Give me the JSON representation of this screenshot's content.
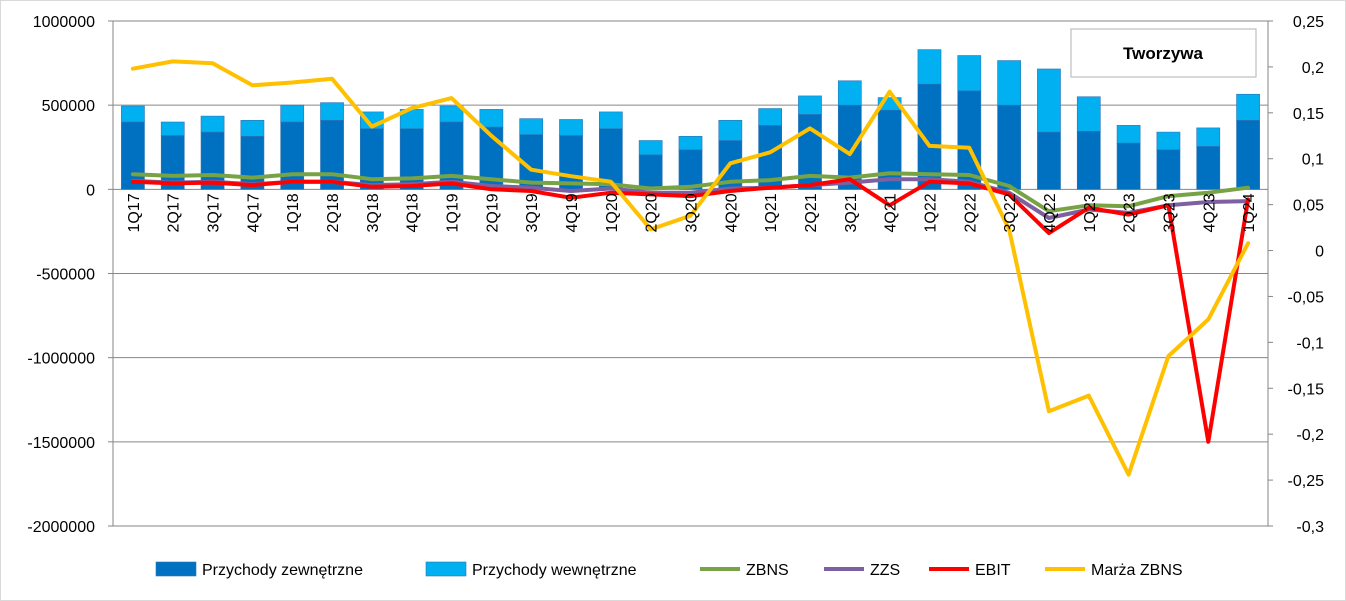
{
  "chart_data": {
    "type": "bar",
    "title": "Tworzywa",
    "categories": [
      "1Q17",
      "2Q17",
      "3Q17",
      "4Q17",
      "1Q18",
      "2Q18",
      "3Q18",
      "4Q18",
      "1Q19",
      "2Q19",
      "3Q19",
      "4Q19",
      "1Q20",
      "2Q20",
      "3Q20",
      "4Q20",
      "1Q21",
      "2Q21",
      "3Q21",
      "4Q21",
      "1Q22",
      "2Q22",
      "3Q22",
      "4Q22",
      "1Q23",
      "2Q23",
      "3Q23",
      "4Q23",
      "1Q24"
    ],
    "y_left": {
      "min": -2000000,
      "max": 1000000,
      "ticks": [
        1000000,
        500000,
        0,
        -500000,
        -1000000,
        -1500000,
        -2000000
      ],
      "tick_labels": [
        "1000000",
        "500000",
        "0",
        "-500000",
        "-1000000",
        "-1500000",
        "-2000000"
      ]
    },
    "y_right": {
      "min": -0.3,
      "max": 0.25,
      "ticks": [
        0.25,
        0.2,
        0.15,
        0.1,
        0.05,
        0,
        -0.05,
        -0.1,
        -0.15,
        -0.2,
        -0.25,
        -0.3
      ],
      "tick_labels": [
        "0,25",
        "0,2",
        "0,15",
        "0,1",
        "0,05",
        "0",
        "-0,05",
        "-0,1",
        "-0,15",
        "-0,2",
        "-0,25",
        "-0,3"
      ]
    },
    "stacked_series": [
      {
        "name": "Przychody zewnętrzne",
        "color": "#0070C0",
        "values": [
          400000,
          320000,
          340000,
          315000,
          400000,
          410000,
          360000,
          360000,
          400000,
          370000,
          325000,
          320000,
          360000,
          205000,
          235000,
          290000,
          380000,
          445000,
          500000,
          470000,
          625000,
          585000,
          500000,
          340000,
          345000,
          275000,
          235000,
          255000,
          410000
        ]
      },
      {
        "name": "Przychody wewnętrzne",
        "color": "#00B0F0",
        "values": [
          95000,
          80000,
          95000,
          95000,
          100000,
          105000,
          100000,
          115000,
          95000,
          105000,
          95000,
          95000,
          100000,
          85000,
          80000,
          120000,
          100000,
          110000,
          145000,
          75000,
          205000,
          210000,
          265000,
          375000,
          205000,
          105000,
          105000,
          110000,
          155000
        ]
      }
    ],
    "line_series": [
      {
        "name": "ZBNS",
        "color": "#77A344",
        "axis": "left",
        "values": [
          90000,
          80000,
          85000,
          70000,
          90000,
          90000,
          60000,
          65000,
          80000,
          60000,
          40000,
          35000,
          30000,
          5000,
          15000,
          45000,
          55000,
          80000,
          70000,
          95000,
          90000,
          85000,
          20000,
          -130000,
          -95000,
          -100000,
          -40000,
          -20000,
          10000
        ]
      },
      {
        "name": "ZZS",
        "color": "#7D60A0",
        "axis": "left",
        "values": [
          50000,
          40000,
          45000,
          30000,
          45000,
          45000,
          25000,
          30000,
          45000,
          20000,
          10000,
          -10000,
          5000,
          -20000,
          -20000,
          5000,
          10000,
          25000,
          40000,
          60000,
          60000,
          45000,
          -20000,
          -170000,
          -120000,
          -140000,
          -95000,
          -75000,
          -70000
        ]
      },
      {
        "name": "EBIT",
        "color": "#FF0000",
        "axis": "left",
        "values": [
          45000,
          35000,
          40000,
          25000,
          45000,
          45000,
          15000,
          20000,
          35000,
          0,
          -10000,
          -50000,
          -20000,
          -30000,
          -40000,
          -10000,
          10000,
          25000,
          60000,
          -95000,
          45000,
          35000,
          -30000,
          -260000,
          -110000,
          -150000,
          -95000,
          -1500000,
          -60000
        ]
      },
      {
        "name": "Marża ZBNS",
        "color": "#FFC000",
        "axis": "right",
        "values": [
          0.198,
          0.206,
          0.204,
          0.18,
          0.183,
          0.187,
          0.135,
          0.155,
          0.166,
          0.125,
          0.088,
          0.081,
          0.075,
          0.023,
          0.038,
          0.095,
          0.107,
          0.133,
          0.105,
          0.173,
          0.114,
          0.112,
          0.023,
          -0.175,
          -0.158,
          -0.244,
          -0.115,
          -0.075,
          0.008
        ]
      }
    ],
    "legend": {
      "position": "bottom",
      "items": [
        "Przychody zewnętrzne",
        "Przychody wewnętrzne",
        "ZBNS",
        "ZZS",
        "EBIT",
        "Marża ZBNS"
      ]
    },
    "grid": true
  }
}
